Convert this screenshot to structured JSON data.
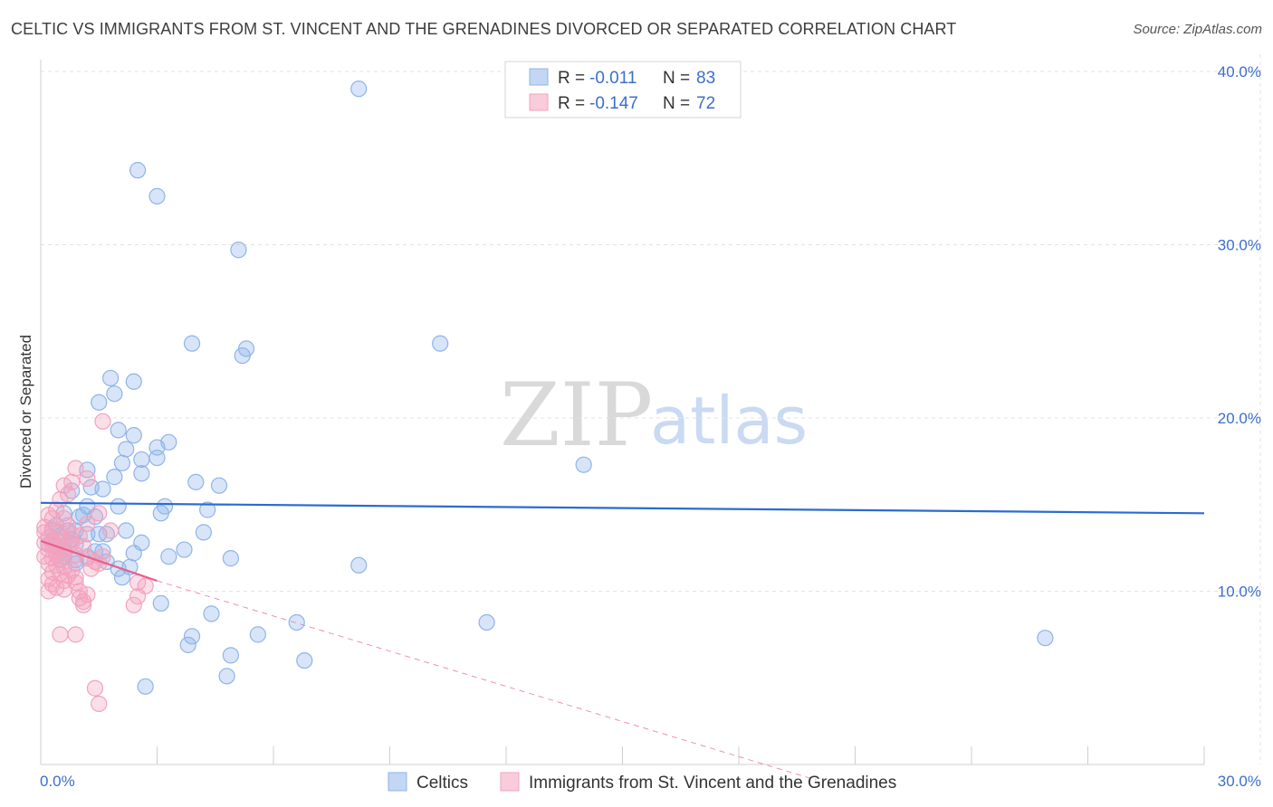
{
  "title": "CELTIC VS IMMIGRANTS FROM ST. VINCENT AND THE GRENADINES DIVORCED OR SEPARATED CORRELATION CHART",
  "source": "Source: ZipAtlas.com",
  "watermark": {
    "zip": "ZIP",
    "atlas": "atlas"
  },
  "legend": {
    "series1": {
      "r_label": "R =",
      "r_value": "-0.011",
      "n_label": "N =",
      "n_value": "83"
    },
    "series2": {
      "r_label": "R =",
      "r_value": "-0.147",
      "n_label": "N =",
      "n_value": "72"
    }
  },
  "colors": {
    "series1": "#8fb4ea",
    "series1_line": "#2b6ccf",
    "series2": "#f3a2bd",
    "series2_line": "#e8608c",
    "grid": "#e3e3e3",
    "tick_text": "#3b6fc9"
  },
  "chart_data": {
    "type": "scatter",
    "title": "CELTIC VS IMMIGRANTS FROM ST. VINCENT AND THE GRENADINES DIVORCED OR SEPARATED CORRELATION CHART",
    "xlabel": "",
    "ylabel": "Divorced or Separated",
    "xlim": [
      0,
      30
    ],
    "ylim": [
      0,
      42
    ],
    "x_tick_labels": [
      "0.0%",
      "30.0%"
    ],
    "y_ticks": [
      10,
      20,
      30,
      40
    ],
    "y_tick_labels": [
      "10.0%",
      "20.0%",
      "30.0%",
      "40.0%"
    ],
    "grid": true,
    "legend_position": "top-center",
    "series": [
      {
        "name": "Celtics",
        "R": -0.011,
        "N": 83,
        "trend": {
          "x": [
            0,
            30
          ],
          "y": [
            15.1,
            14.5
          ]
        },
        "points": [
          [
            8.2,
            39.0
          ],
          [
            2.5,
            34.3
          ],
          [
            3.0,
            32.8
          ],
          [
            5.1,
            29.7
          ],
          [
            3.9,
            24.3
          ],
          [
            5.2,
            23.6
          ],
          [
            5.3,
            24.0
          ],
          [
            10.3,
            24.3
          ],
          [
            1.8,
            22.3
          ],
          [
            2.4,
            22.1
          ],
          [
            1.9,
            21.4
          ],
          [
            1.5,
            20.9
          ],
          [
            2.0,
            19.3
          ],
          [
            2.4,
            19.0
          ],
          [
            2.2,
            18.2
          ],
          [
            3.0,
            18.3
          ],
          [
            3.3,
            18.6
          ],
          [
            2.1,
            17.4
          ],
          [
            2.6,
            17.6
          ],
          [
            3.0,
            17.7
          ],
          [
            1.9,
            16.6
          ],
          [
            2.6,
            16.8
          ],
          [
            1.2,
            17.0
          ],
          [
            4.0,
            16.3
          ],
          [
            4.6,
            16.1
          ],
          [
            14.0,
            17.3
          ],
          [
            1.3,
            16.0
          ],
          [
            1.6,
            15.9
          ],
          [
            0.8,
            15.8
          ],
          [
            1.2,
            14.9
          ],
          [
            2.0,
            14.9
          ],
          [
            3.2,
            14.9
          ],
          [
            3.1,
            14.5
          ],
          [
            4.3,
            14.7
          ],
          [
            1.1,
            14.4
          ],
          [
            1.0,
            14.3
          ],
          [
            1.4,
            14.3
          ],
          [
            0.6,
            14.5
          ],
          [
            0.7,
            13.5
          ],
          [
            0.9,
            13.5
          ],
          [
            1.2,
            13.3
          ],
          [
            1.5,
            13.3
          ],
          [
            1.7,
            13.3
          ],
          [
            2.2,
            13.5
          ],
          [
            4.2,
            13.4
          ],
          [
            0.5,
            13.2
          ],
          [
            0.8,
            13.0
          ],
          [
            2.6,
            12.8
          ],
          [
            0.4,
            12.6
          ],
          [
            0.6,
            12.4
          ],
          [
            1.4,
            12.3
          ],
          [
            1.2,
            12.0
          ],
          [
            1.6,
            12.3
          ],
          [
            0.9,
            11.8
          ],
          [
            2.4,
            12.2
          ],
          [
            3.7,
            12.4
          ],
          [
            3.3,
            12.0
          ],
          [
            4.9,
            11.9
          ],
          [
            0.9,
            11.6
          ],
          [
            1.7,
            11.7
          ],
          [
            2.3,
            11.4
          ],
          [
            8.2,
            11.5
          ],
          [
            2.0,
            11.3
          ],
          [
            2.1,
            10.8
          ],
          [
            0.3,
            12.9
          ],
          [
            0.5,
            11.9
          ],
          [
            0.2,
            12.7
          ],
          [
            0.3,
            13.5
          ],
          [
            0.6,
            12.0
          ],
          [
            3.1,
            9.3
          ],
          [
            4.4,
            8.7
          ],
          [
            6.6,
            8.2
          ],
          [
            11.5,
            8.2
          ],
          [
            25.9,
            7.3
          ],
          [
            3.9,
            7.4
          ],
          [
            5.6,
            7.5
          ],
          [
            3.8,
            6.9
          ],
          [
            4.9,
            6.3
          ],
          [
            6.8,
            6.0
          ],
          [
            4.8,
            5.1
          ],
          [
            2.7,
            4.5
          ],
          [
            0.4,
            13.8
          ],
          [
            0.9,
            12.7
          ]
        ]
      },
      {
        "name": "Immigrants from St. Vincent and the Grenadines",
        "R": -0.147,
        "N": 72,
        "trend": {
          "x": [
            0,
            3.0
          ],
          "y": [
            12.9,
            10.6
          ]
        },
        "trend_extension": {
          "x": [
            3.0,
            20.0
          ],
          "y": [
            10.6,
            -0.9
          ]
        },
        "points": [
          [
            1.6,
            19.8
          ],
          [
            0.9,
            17.1
          ],
          [
            1.2,
            16.5
          ],
          [
            0.8,
            16.3
          ],
          [
            0.6,
            16.1
          ],
          [
            0.7,
            15.6
          ],
          [
            0.5,
            15.3
          ],
          [
            0.4,
            14.7
          ],
          [
            0.2,
            14.4
          ],
          [
            0.3,
            14.2
          ],
          [
            0.6,
            14.2
          ],
          [
            1.5,
            14.5
          ],
          [
            1.2,
            13.9
          ],
          [
            0.1,
            13.7
          ],
          [
            0.3,
            13.6
          ],
          [
            0.5,
            13.4
          ],
          [
            0.8,
            13.3
          ],
          [
            1.8,
            13.5
          ],
          [
            1.0,
            13.2
          ],
          [
            0.2,
            13.1
          ],
          [
            0.4,
            13.0
          ],
          [
            0.6,
            12.9
          ],
          [
            0.1,
            12.8
          ],
          [
            0.3,
            12.7
          ],
          [
            0.5,
            12.6
          ],
          [
            0.7,
            12.5
          ],
          [
            0.2,
            12.4
          ],
          [
            0.4,
            12.3
          ],
          [
            0.6,
            12.2
          ],
          [
            0.9,
            12.1
          ],
          [
            0.1,
            12.0
          ],
          [
            0.3,
            11.9
          ],
          [
            1.2,
            11.9
          ],
          [
            0.5,
            11.8
          ],
          [
            1.4,
            11.7
          ],
          [
            0.2,
            11.6
          ],
          [
            0.4,
            11.5
          ],
          [
            1.5,
            11.6
          ],
          [
            0.6,
            11.4
          ],
          [
            1.3,
            11.3
          ],
          [
            0.8,
            11.2
          ],
          [
            0.3,
            11.1
          ],
          [
            0.5,
            11.0
          ],
          [
            0.7,
            10.9
          ],
          [
            0.9,
            10.8
          ],
          [
            0.2,
            10.7
          ],
          [
            0.6,
            10.6
          ],
          [
            0.9,
            10.5
          ],
          [
            2.5,
            10.5
          ],
          [
            2.7,
            10.3
          ],
          [
            0.3,
            10.4
          ],
          [
            0.4,
            10.2
          ],
          [
            0.6,
            10.1
          ],
          [
            1.0,
            10.0
          ],
          [
            0.2,
            10.0
          ],
          [
            1.2,
            9.8
          ],
          [
            2.5,
            9.7
          ],
          [
            1.0,
            9.6
          ],
          [
            1.1,
            9.4
          ],
          [
            2.4,
            9.2
          ],
          [
            1.1,
            9.2
          ],
          [
            0.5,
            7.5
          ],
          [
            0.9,
            7.5
          ],
          [
            1.4,
            4.4
          ],
          [
            1.5,
            3.5
          ],
          [
            0.3,
            12.9
          ],
          [
            0.1,
            13.4
          ],
          [
            0.7,
            13.8
          ],
          [
            1.6,
            12.0
          ],
          [
            1.1,
            12.6
          ],
          [
            0.4,
            12.1
          ],
          [
            0.8,
            12.8
          ]
        ]
      }
    ]
  }
}
